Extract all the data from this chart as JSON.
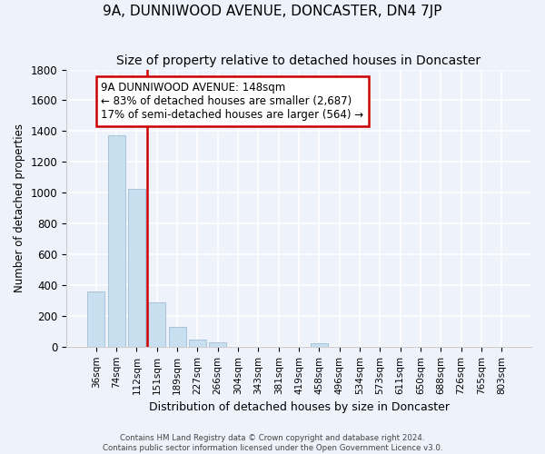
{
  "title": "9A, DUNNIWOOD AVENUE, DONCASTER, DN4 7JP",
  "subtitle": "Size of property relative to detached houses in Doncaster",
  "xlabel": "Distribution of detached houses by size in Doncaster",
  "ylabel": "Number of detached properties",
  "footer_line1": "Contains HM Land Registry data © Crown copyright and database right 2024.",
  "footer_line2": "Contains public sector information licensed under the Open Government Licence v3.0.",
  "bar_labels": [
    "36sqm",
    "74sqm",
    "112sqm",
    "151sqm",
    "189sqm",
    "227sqm",
    "266sqm",
    "304sqm",
    "343sqm",
    "381sqm",
    "419sqm",
    "458sqm",
    "496sqm",
    "534sqm",
    "573sqm",
    "611sqm",
    "650sqm",
    "688sqm",
    "726sqm",
    "765sqm",
    "803sqm"
  ],
  "bar_values": [
    360,
    1370,
    1025,
    285,
    130,
    48,
    30,
    0,
    0,
    0,
    0,
    20,
    0,
    0,
    0,
    0,
    0,
    0,
    0,
    0,
    0
  ],
  "bar_color": "#c8dff0",
  "bar_edge_color": "#a0bcd4",
  "vline_x_index": 2.5,
  "vline_color": "#cc0000",
  "annotation_title": "9A DUNNIWOOD AVENUE: 148sqm",
  "annotation_line2": "← 83% of detached houses are smaller (2,687)",
  "annotation_line3": "17% of semi-detached houses are larger (564) →",
  "ylim": [
    0,
    1800
  ],
  "yticks": [
    0,
    200,
    400,
    600,
    800,
    1000,
    1200,
    1400,
    1600,
    1800
  ],
  "background_color": "#eef2fa",
  "grid_color": "white",
  "title_fontsize": 11,
  "subtitle_fontsize": 10,
  "annot_fontsize": 8.5
}
